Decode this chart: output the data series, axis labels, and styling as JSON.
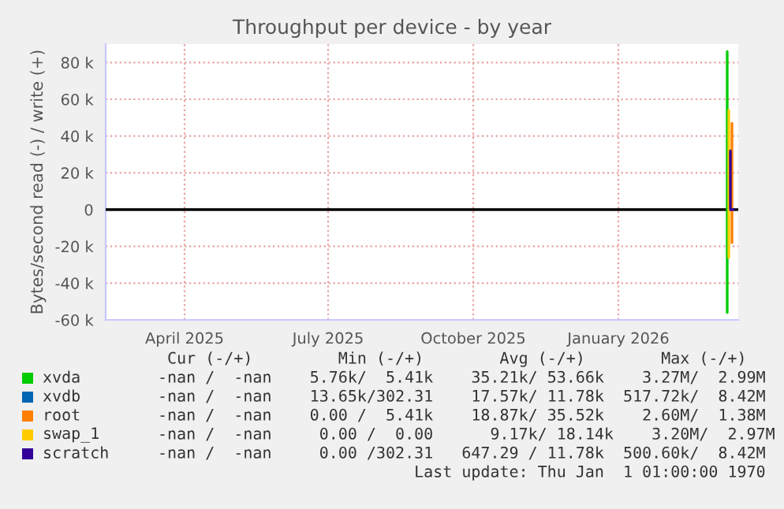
{
  "chart_data": {
    "type": "line",
    "title": "Throughput per device - by year",
    "ylabel": "Bytes/second read (-) / write (+)",
    "xlim": [
      "2025-02-10",
      "2026-03-18"
    ],
    "xticks": [
      {
        "value": "2025-04-01",
        "label": "April 2025"
      },
      {
        "value": "2025-07-01",
        "label": "July 2025"
      },
      {
        "value": "2025-10-01",
        "label": "October 2025"
      },
      {
        "value": "2026-01-01",
        "label": "January 2026"
      }
    ],
    "ylim": [
      -60000,
      90000
    ],
    "yticks": [
      {
        "value": -60000,
        "label": "-60 k"
      },
      {
        "value": -40000,
        "label": "-40 k"
      },
      {
        "value": -20000,
        "label": "-20 k"
      },
      0,
      {
        "value": 20000,
        "label": "20 k"
      },
      {
        "value": 40000,
        "label": "40 k"
      },
      {
        "value": 60000,
        "label": "60 k"
      },
      {
        "value": 80000,
        "label": "80 k"
      }
    ],
    "grid": true,
    "legend": "bottom",
    "ref_lines": [
      {
        "axis": "y",
        "value": 0,
        "color": "#000000"
      }
    ],
    "series": [
      {
        "name": "xvda",
        "color": "#00cc00",
        "x": [
          "2026-03-11",
          "2026-03-11",
          "2026-03-11"
        ],
        "values": [
          86000,
          -56000,
          0
        ]
      },
      {
        "name": "xvdb",
        "color": "#0066b3"
      },
      {
        "name": "root",
        "color": "#ff8000",
        "x": [
          "2026-03-14",
          "2026-03-14",
          "2026-03-14"
        ],
        "values": [
          47000,
          -18000,
          0
        ]
      },
      {
        "name": "swap_1",
        "color": "#ffcc00",
        "x": [
          "2026-03-12",
          "2026-03-12",
          "2026-03-12"
        ],
        "values": [
          54000,
          -26000,
          0
        ]
      },
      {
        "name": "scratch",
        "color": "#330099",
        "x": [
          "2026-03-13",
          "2026-03-13",
          "2026-03-15"
        ],
        "values": [
          32000,
          0,
          0
        ]
      }
    ],
    "annotations": [
      " Cur (-/+)         Min (-/+)        Avg (-/+)        Max (-/+)",
      "-nan /  -nan    5.76k/  5.41k    35.21k/ 53.66k    3.27M/  2.99M",
      "-nan /  -nan    13.65k/302.31    17.57k/ 11.78k  517.72k/  8.42M",
      "-nan /  -nan    0.00 /  5.41k    18.87k/ 35.52k    2.60M/  1.38M",
      "-nan /  -nan     0.00 /  0.00      9.17k/ 18.14k    3.20M/  2.97M",
      "-nan /  -nan     0.00 /302.31   647.29 / 11.78k  500.60k/  8.42M",
      "                           Last update: Thu Jan  1 01:00:00 1970"
    ]
  }
}
